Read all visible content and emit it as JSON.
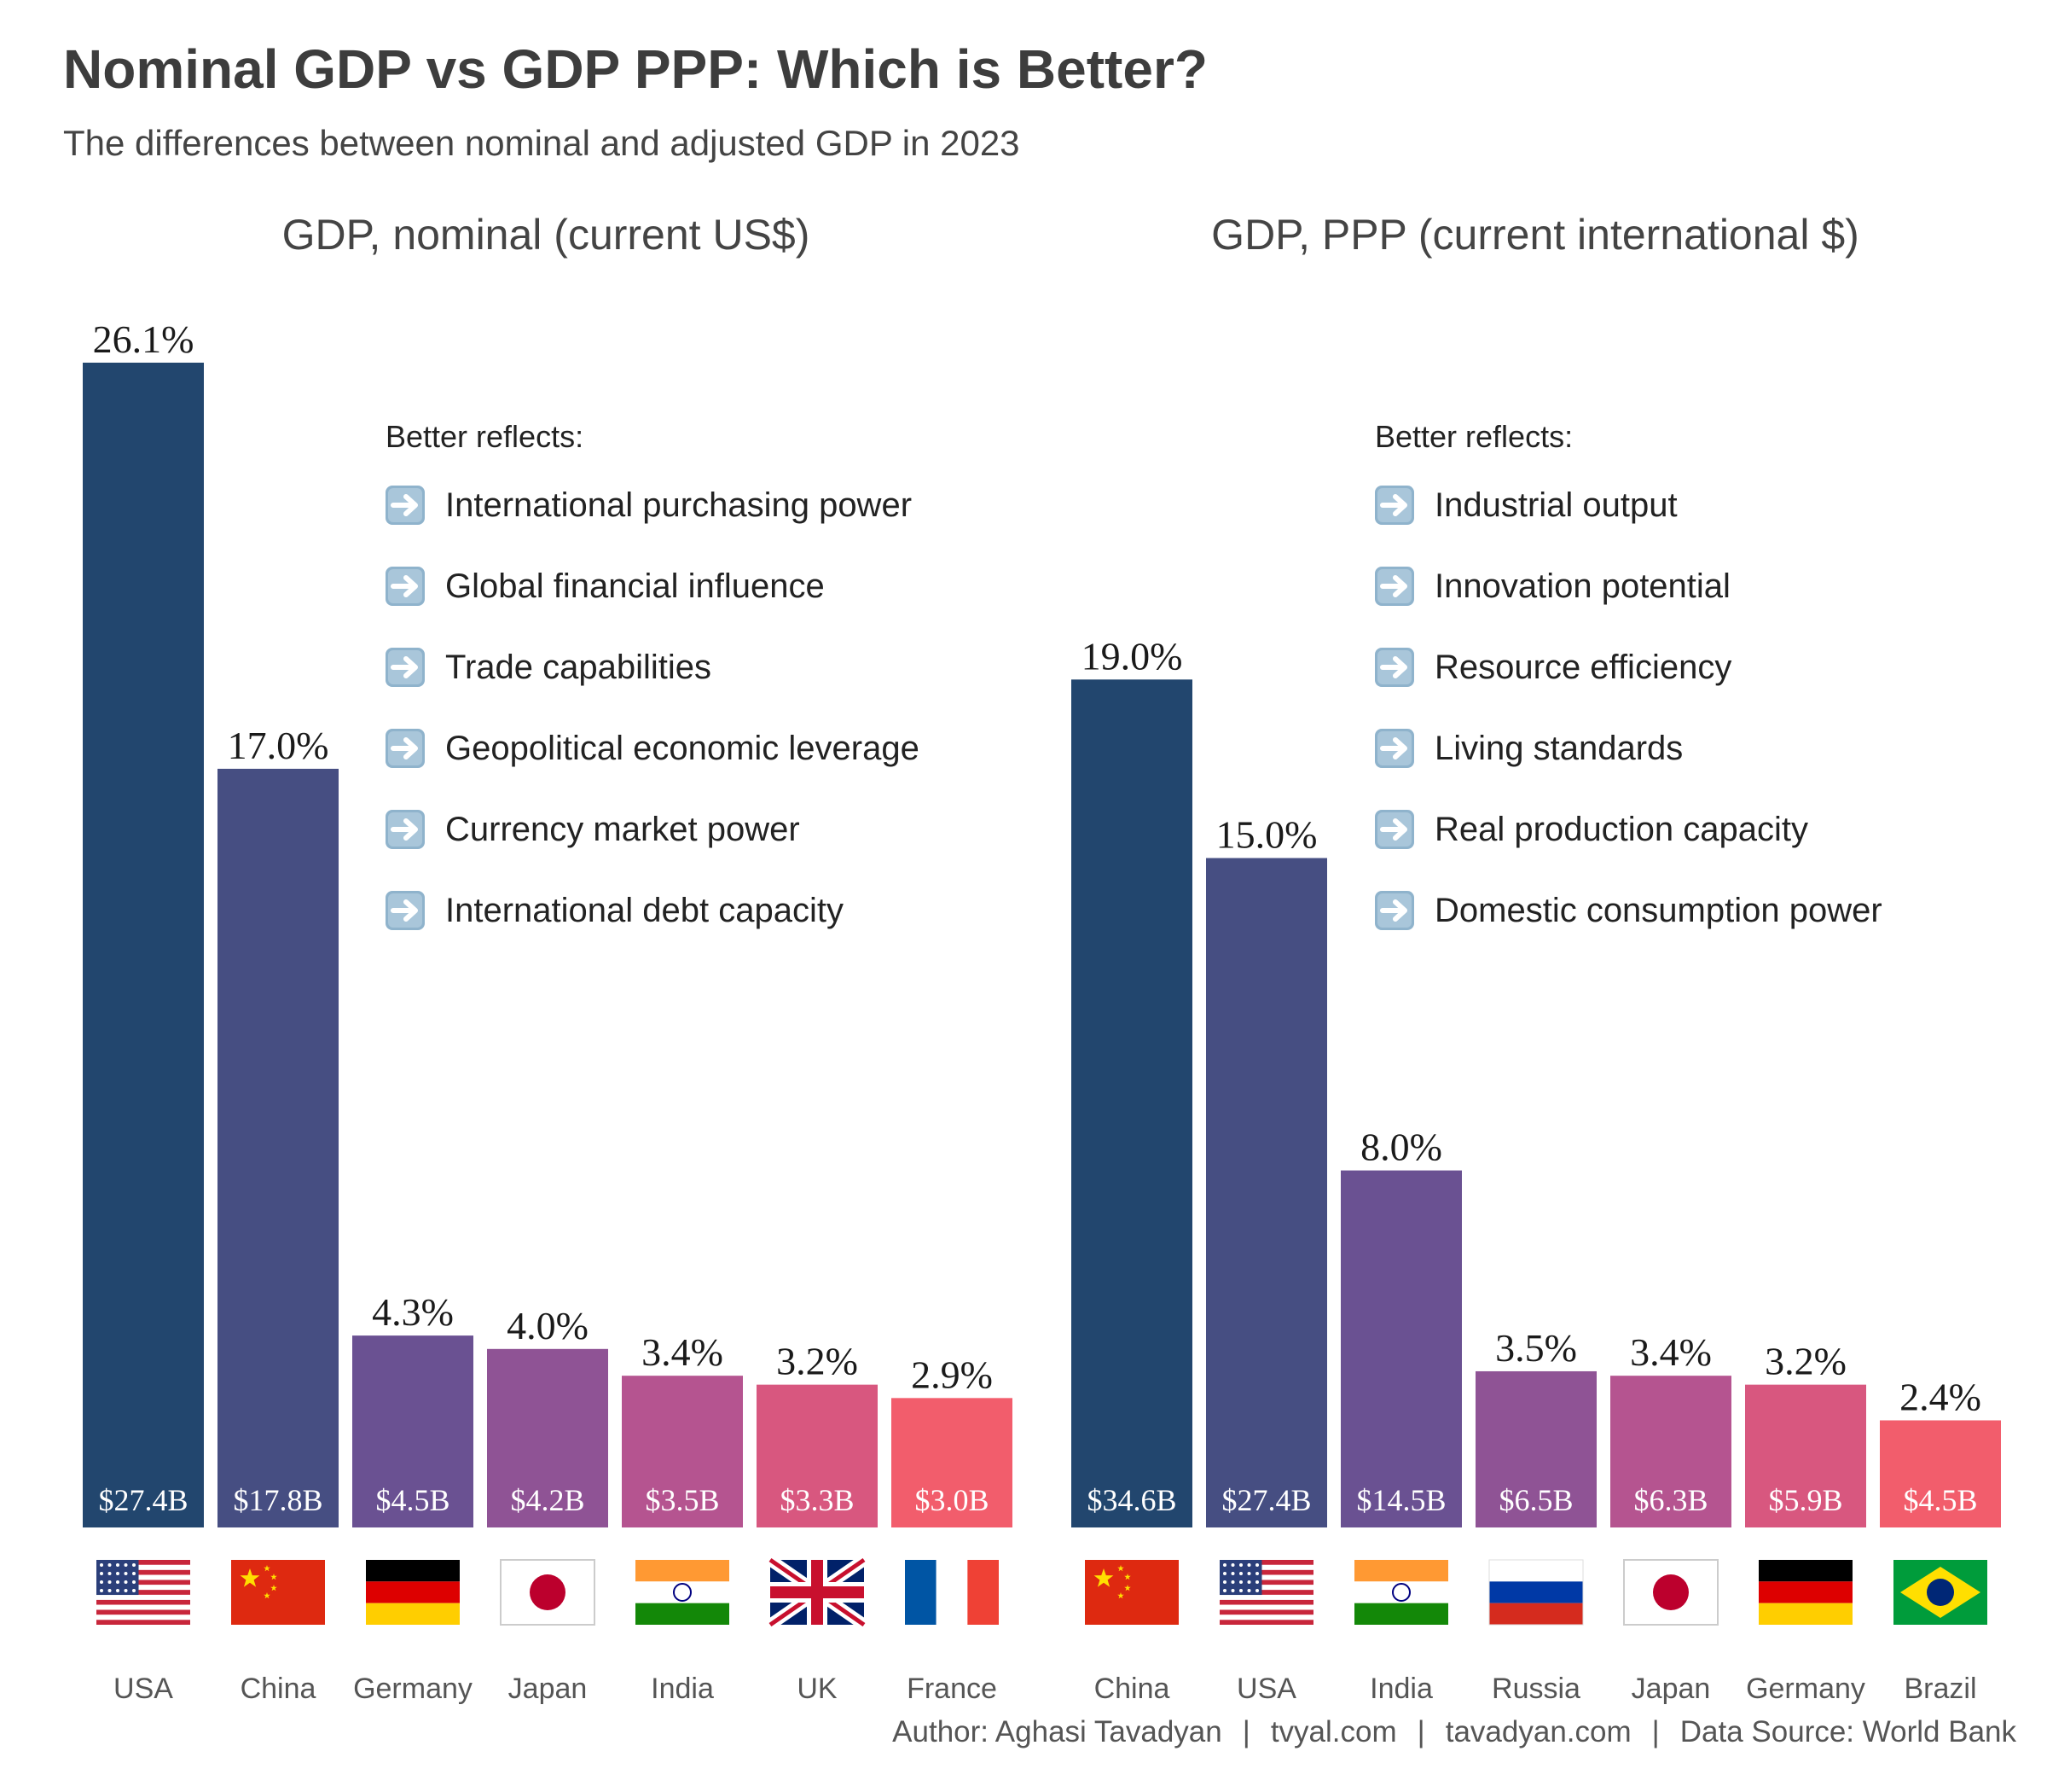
{
  "title": "Nominal GDP vs GDP PPP: Which is Better?",
  "subtitle": "The differences between nominal and adjusted GDP in 2023",
  "footer": {
    "author": "Author: Aghasi Tavadyan",
    "site1": "tvyal.com",
    "site2": "tavadyan.com",
    "source": "Data Source: World Bank"
  },
  "colors": [
    "#22466e",
    "#464e82",
    "#6a5192",
    "#8f5395",
    "#b55490",
    "#d8577f",
    "#f25d6c"
  ],
  "chart_data": [
    {
      "type": "bar",
      "title": "GDP, nominal (current US$)",
      "categories": [
        "USA",
        "China",
        "Germany",
        "Japan",
        "India",
        "UK",
        "France"
      ],
      "flags": [
        "us-flag-icon",
        "china-flag-icon",
        "germany-flag-icon",
        "japan-flag-icon",
        "india-flag-icon",
        "uk-flag-icon",
        "france-flag-icon"
      ],
      "values": [
        26.1,
        17.0,
        4.3,
        4.0,
        3.4,
        3.2,
        2.9
      ],
      "value_labels": [
        "26.1%",
        "17.0%",
        "4.3%",
        "4.0%",
        "3.4%",
        "3.2%",
        "2.9%"
      ],
      "gdp_labels": [
        "$27.4B",
        "$17.8B",
        "$4.5B",
        "$4.2B",
        "$3.5B",
        "$3.3B",
        "$3.0B"
      ],
      "ylim": [
        0,
        28
      ],
      "note": {
        "heading": "Better reflects:",
        "items": [
          "International purchasing power",
          "Global financial influence",
          "Trade capabilities",
          "Geopolitical economic leverage",
          "Currency market power",
          "International debt capacity"
        ]
      }
    },
    {
      "type": "bar",
      "title": "GDP, PPP (current international $)",
      "categories": [
        "China",
        "USA",
        "India",
        "Russia",
        "Japan",
        "Germany",
        "Brazil"
      ],
      "flags": [
        "china-flag-icon",
        "us-flag-icon",
        "india-flag-icon",
        "russia-flag-icon",
        "japan-flag-icon",
        "germany-flag-icon",
        "brazil-flag-icon"
      ],
      "values": [
        19.0,
        15.0,
        8.0,
        3.5,
        3.4,
        3.2,
        2.4
      ],
      "value_labels": [
        "19.0%",
        "15.0%",
        "8.0%",
        "3.5%",
        "3.4%",
        "3.2%",
        "2.4%"
      ],
      "gdp_labels": [
        "$34.6B",
        "$27.4B",
        "$14.5B",
        "$6.5B",
        "$6.3B",
        "$5.9B",
        "$4.5B"
      ],
      "ylim": [
        0,
        28
      ],
      "note": {
        "heading": "Better reflects:",
        "items": [
          "Industrial output",
          "Innovation potential",
          "Resource efficiency",
          "Living standards",
          "Real production capacity",
          "Domestic consumption power"
        ]
      }
    }
  ]
}
